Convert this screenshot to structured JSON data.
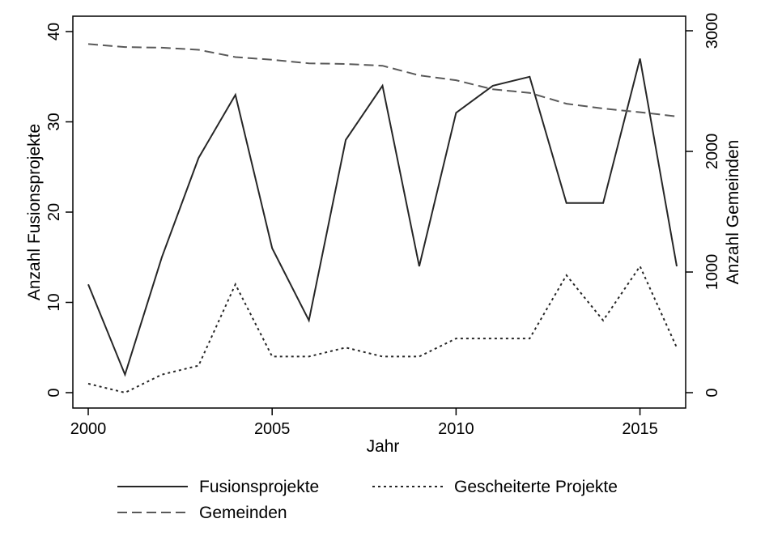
{
  "chart_data": {
    "type": "line",
    "title": "",
    "xlabel": "Jahr",
    "ylabel_left": "Anzahl Fusionsprojekte",
    "ylabel_right": "Anzahl Gemeinden",
    "xlim": [
      2000,
      2016
    ],
    "ylim_left": [
      0,
      40
    ],
    "ylim_right": [
      0,
      3000
    ],
    "x": [
      2000,
      2001,
      2002,
      2003,
      2004,
      2005,
      2006,
      2007,
      2008,
      2009,
      2010,
      2011,
      2012,
      2013,
      2014,
      2015,
      2016
    ],
    "xticks": [
      "2000",
      "2005",
      "2010",
      "2015"
    ],
    "xtick_values": [
      2000,
      2005,
      2010,
      2015
    ],
    "yticks_left": [
      "0",
      "10",
      "20",
      "30",
      "40"
    ],
    "ytick_values_left": [
      0,
      10,
      20,
      30,
      40
    ],
    "yticks_right": [
      "0",
      "1000",
      "2000",
      "3000"
    ],
    "ytick_values_right": [
      0,
      1000,
      2000,
      3000
    ],
    "grid": false,
    "legend_position": "bottom",
    "series": [
      {
        "name": "Fusionsprojekte",
        "axis": "left",
        "style": "solid",
        "color": "#262626",
        "values": [
          12,
          2,
          15,
          26,
          33,
          16,
          8,
          28,
          34,
          14,
          31,
          34,
          35,
          21,
          21,
          37,
          14
        ]
      },
      {
        "name": "Gescheiterte Projekte",
        "axis": "left",
        "style": "dotted",
        "color": "#262626",
        "values": [
          1,
          0,
          2,
          3,
          12,
          4,
          4,
          5,
          4,
          4,
          6,
          6,
          6,
          13,
          8,
          14,
          5
        ]
      },
      {
        "name": "Gemeinden",
        "axis": "right",
        "style": "dashed",
        "color": "#595959",
        "values": [
          2890,
          2865,
          2860,
          2842,
          2782,
          2760,
          2730,
          2725,
          2710,
          2630,
          2590,
          2515,
          2485,
          2395,
          2355,
          2325,
          2290
        ]
      }
    ]
  }
}
